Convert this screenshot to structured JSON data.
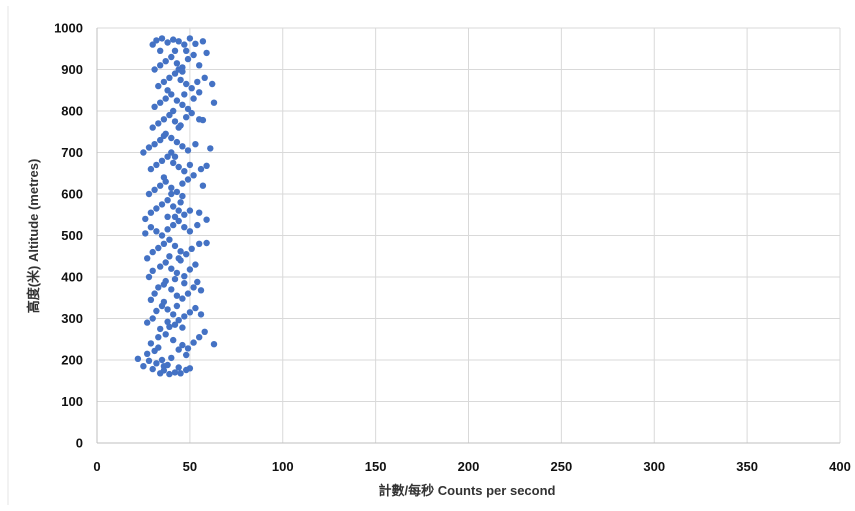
{
  "chart_data": {
    "type": "scatter",
    "title": "",
    "xlabel": "計數/每秒 Counts per second",
    "ylabel": "高度(米) Altitude (metres)",
    "xlim": [
      0,
      400
    ],
    "ylim": [
      0,
      1000
    ],
    "x_ticks": [
      "0",
      "50",
      "100",
      "150",
      "200",
      "250",
      "300",
      "350",
      "400"
    ],
    "y_ticks": [
      "0",
      "100",
      "200",
      "300",
      "400",
      "500",
      "600",
      "700",
      "800",
      "900",
      "1000"
    ],
    "grid": true,
    "marker_color": "#4472c4",
    "series": [
      {
        "points": [
          [
            22,
            203
          ],
          [
            25,
            185
          ],
          [
            27,
            215
          ],
          [
            28,
            198
          ],
          [
            30,
            178
          ],
          [
            32,
            192
          ],
          [
            34,
            168
          ],
          [
            36,
            175
          ],
          [
            39,
            166
          ],
          [
            42,
            170
          ],
          [
            45,
            168
          ],
          [
            48,
            176
          ],
          [
            50,
            180
          ],
          [
            44,
            182
          ],
          [
            38,
            188
          ],
          [
            35,
            200
          ],
          [
            31,
            222
          ],
          [
            29,
            240
          ],
          [
            33,
            255
          ],
          [
            37,
            262
          ],
          [
            41,
            248
          ],
          [
            46,
            236
          ],
          [
            49,
            228
          ],
          [
            52,
            242
          ],
          [
            55,
            255
          ],
          [
            58,
            268
          ],
          [
            63,
            238
          ],
          [
            27,
            290
          ],
          [
            30,
            300
          ],
          [
            32,
            318
          ],
          [
            35,
            330
          ],
          [
            38,
            322
          ],
          [
            41,
            310
          ],
          [
            44,
            296
          ],
          [
            47,
            305
          ],
          [
            50,
            315
          ],
          [
            53,
            325
          ],
          [
            56,
            310
          ],
          [
            29,
            345
          ],
          [
            31,
            360
          ],
          [
            33,
            375
          ],
          [
            36,
            382
          ],
          [
            40,
            370
          ],
          [
            43,
            355
          ],
          [
            46,
            348
          ],
          [
            49,
            360
          ],
          [
            52,
            375
          ],
          [
            56,
            368
          ],
          [
            54,
            388
          ],
          [
            28,
            400
          ],
          [
            30,
            415
          ],
          [
            34,
            425
          ],
          [
            37,
            435
          ],
          [
            40,
            420
          ],
          [
            43,
            410
          ],
          [
            47,
            402
          ],
          [
            50,
            418
          ],
          [
            53,
            430
          ],
          [
            27,
            445
          ],
          [
            30,
            460
          ],
          [
            33,
            470
          ],
          [
            36,
            480
          ],
          [
            39,
            490
          ],
          [
            42,
            475
          ],
          [
            45,
            462
          ],
          [
            48,
            455
          ],
          [
            51,
            468
          ],
          [
            55,
            480
          ],
          [
            59,
            482
          ],
          [
            26,
            505
          ],
          [
            29,
            520
          ],
          [
            32,
            510
          ],
          [
            35,
            500
          ],
          [
            38,
            515
          ],
          [
            41,
            525
          ],
          [
            44,
            535
          ],
          [
            47,
            520
          ],
          [
            50,
            510
          ],
          [
            54,
            525
          ],
          [
            26,
            540
          ],
          [
            29,
            555
          ],
          [
            32,
            565
          ],
          [
            35,
            575
          ],
          [
            38,
            585
          ],
          [
            41,
            570
          ],
          [
            44,
            560
          ],
          [
            47,
            550
          ],
          [
            50,
            560
          ],
          [
            55,
            555
          ],
          [
            59,
            538
          ],
          [
            28,
            600
          ],
          [
            31,
            610
          ],
          [
            34,
            620
          ],
          [
            37,
            630
          ],
          [
            40,
            615
          ],
          [
            43,
            605
          ],
          [
            46,
            625
          ],
          [
            49,
            635
          ],
          [
            52,
            645
          ],
          [
            57,
            620
          ],
          [
            29,
            660
          ],
          [
            32,
            670
          ],
          [
            35,
            680
          ],
          [
            38,
            690
          ],
          [
            41,
            675
          ],
          [
            44,
            665
          ],
          [
            47,
            655
          ],
          [
            50,
            670
          ],
          [
            56,
            660
          ],
          [
            59,
            668
          ],
          [
            25,
            700
          ],
          [
            28,
            712
          ],
          [
            31,
            720
          ],
          [
            34,
            730
          ],
          [
            37,
            745
          ],
          [
            40,
            735
          ],
          [
            43,
            725
          ],
          [
            46,
            715
          ],
          [
            49,
            705
          ],
          [
            53,
            720
          ],
          [
            61,
            710
          ],
          [
            30,
            760
          ],
          [
            33,
            770
          ],
          [
            36,
            780
          ],
          [
            39,
            790
          ],
          [
            42,
            775
          ],
          [
            45,
            765
          ],
          [
            48,
            785
          ],
          [
            51,
            795
          ],
          [
            55,
            780
          ],
          [
            57,
            778
          ],
          [
            31,
            810
          ],
          [
            34,
            820
          ],
          [
            37,
            830
          ],
          [
            40,
            840
          ],
          [
            43,
            825
          ],
          [
            46,
            815
          ],
          [
            49,
            805
          ],
          [
            52,
            830
          ],
          [
            55,
            845
          ],
          [
            63,
            820
          ],
          [
            33,
            860
          ],
          [
            36,
            870
          ],
          [
            39,
            880
          ],
          [
            42,
            890
          ],
          [
            45,
            875
          ],
          [
            48,
            865
          ],
          [
            51,
            855
          ],
          [
            54,
            870
          ],
          [
            58,
            880
          ],
          [
            62,
            865
          ],
          [
            31,
            900
          ],
          [
            34,
            910
          ],
          [
            37,
            920
          ],
          [
            40,
            930
          ],
          [
            43,
            915
          ],
          [
            46,
            905
          ],
          [
            49,
            925
          ],
          [
            52,
            935
          ],
          [
            55,
            910
          ],
          [
            59,
            940
          ],
          [
            30,
            960
          ],
          [
            32,
            970
          ],
          [
            35,
            975
          ],
          [
            38,
            965
          ],
          [
            41,
            972
          ],
          [
            44,
            968
          ],
          [
            47,
            960
          ],
          [
            50,
            975
          ],
          [
            53,
            962
          ],
          [
            57,
            968
          ],
          [
            36,
            185
          ],
          [
            40,
            205
          ],
          [
            44,
            225
          ],
          [
            48,
            212
          ],
          [
            34,
            275
          ],
          [
            38,
            292
          ],
          [
            42,
            285
          ],
          [
            46,
            278
          ],
          [
            36,
            340
          ],
          [
            42,
            395
          ],
          [
            47,
            385
          ],
          [
            39,
            450
          ],
          [
            44,
            445
          ],
          [
            38,
            545
          ],
          [
            42,
            545
          ],
          [
            46,
            595
          ],
          [
            36,
            640
          ],
          [
            40,
            700
          ],
          [
            44,
            760
          ],
          [
            38,
            850
          ],
          [
            46,
            895
          ],
          [
            42,
            945
          ],
          [
            34,
            945
          ],
          [
            48,
            945
          ],
          [
            33,
            230
          ],
          [
            37,
            390
          ],
          [
            45,
            580
          ],
          [
            41,
            800
          ],
          [
            39,
            280
          ],
          [
            43,
            330
          ],
          [
            45,
            440
          ],
          [
            40,
            600
          ],
          [
            42,
            690
          ],
          [
            36,
            740
          ],
          [
            47,
            840
          ],
          [
            44,
            900
          ]
        ]
      }
    ]
  }
}
